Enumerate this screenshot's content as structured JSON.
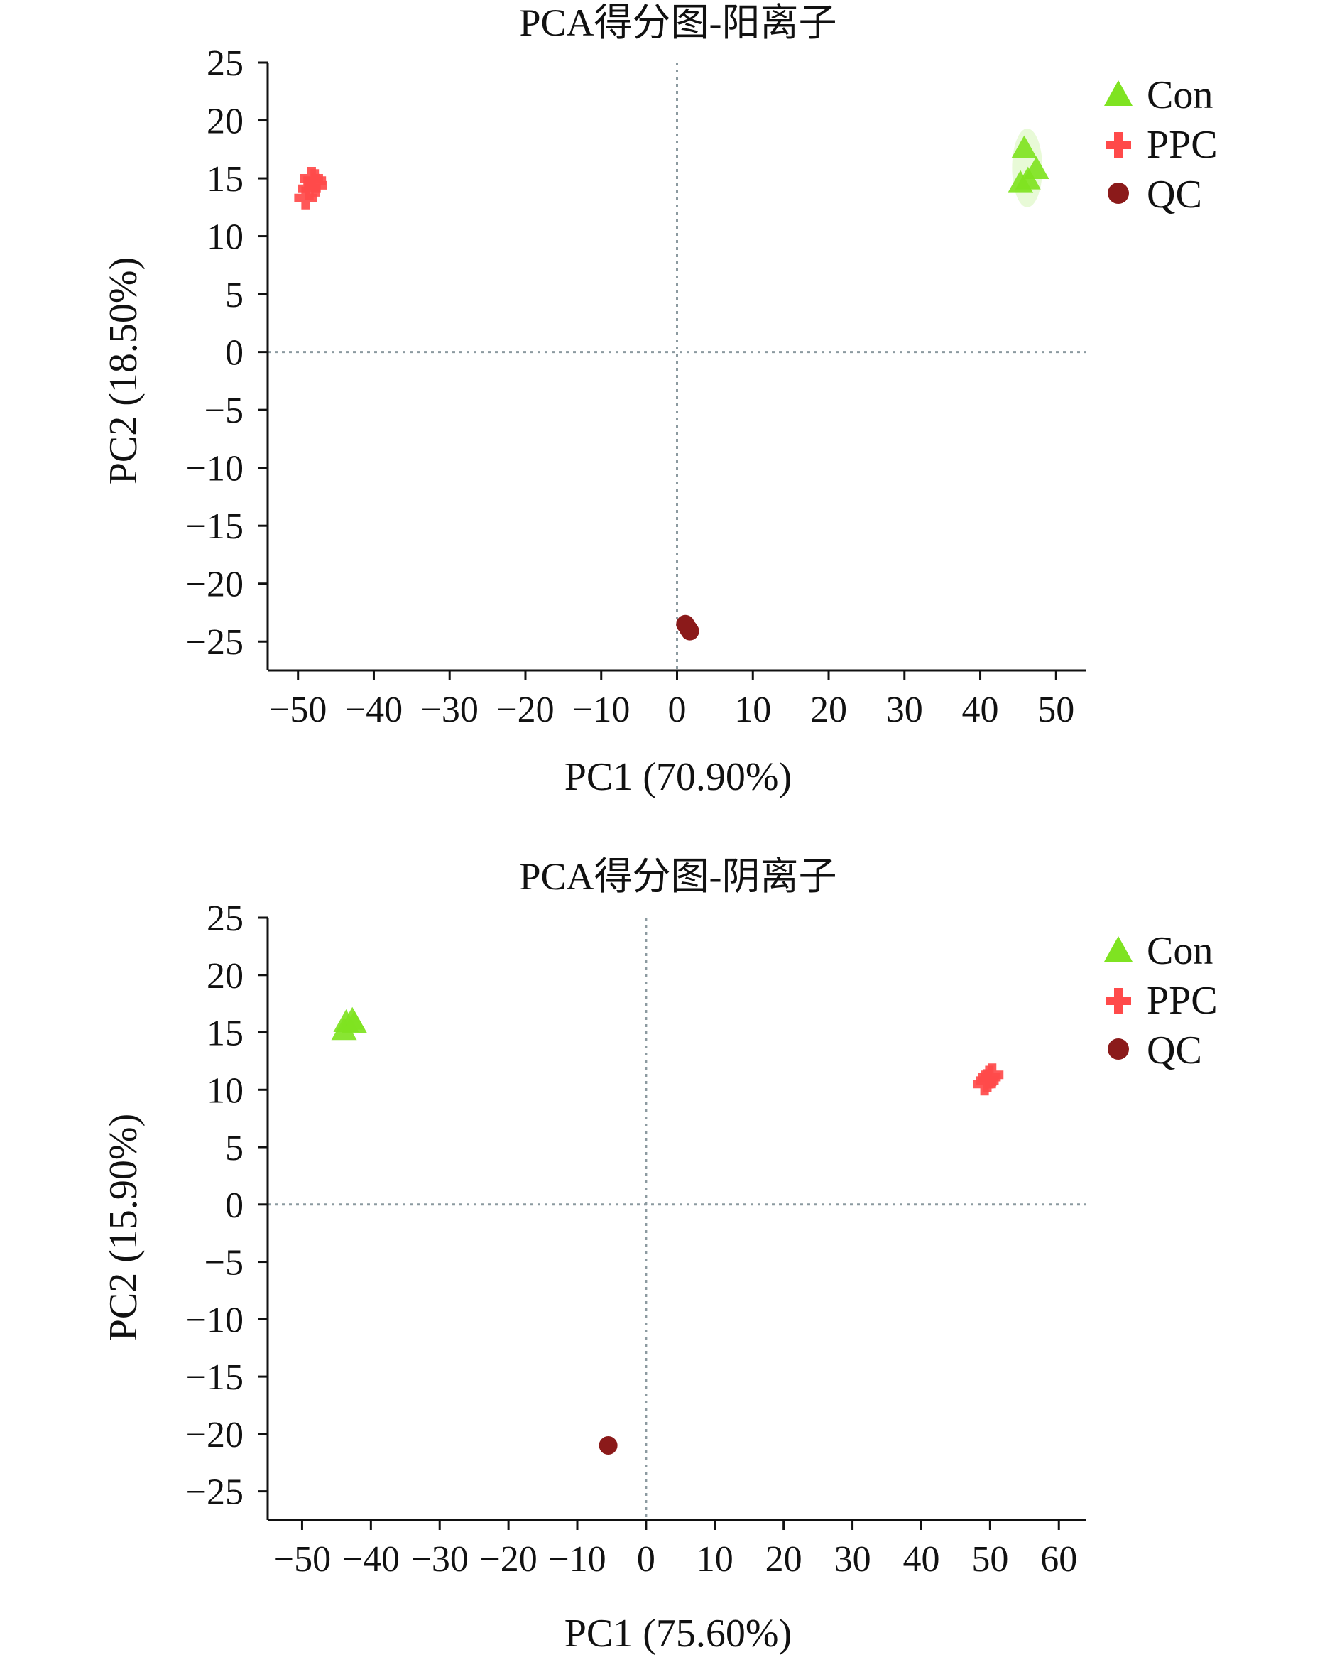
{
  "charts": [
    {
      "title": "PCA得分图-阳离子",
      "xlabel": "PC1 (70.90%)",
      "ylabel": "PC2 (18.50%)"
    },
    {
      "title": "PCA得分图-阴离子",
      "xlabel": "PC1 (75.60%)",
      "ylabel": "PC2 (15.90%)"
    }
  ],
  "legend_labels": [
    "Con",
    "PPC",
    "QC"
  ],
  "chart_data": [
    {
      "type": "scatter",
      "title": "PCA得分图-阳离子",
      "xlabel": "PC1 (70.90%)",
      "ylabel": "PC2 (18.50%)",
      "xlim": [
        -54,
        54
      ],
      "ylim": [
        -27.5,
        25
      ],
      "xticks": [
        -50,
        -40,
        -30,
        -20,
        -10,
        0,
        10,
        20,
        30,
        40,
        50
      ],
      "yticks": [
        25,
        20,
        15,
        10,
        5,
        0,
        -5,
        -10,
        -15,
        -20,
        -25
      ],
      "xtick_labels": [
        "−50",
        "−40",
        "−30",
        "−20",
        "−10",
        "0",
        "10",
        "20",
        "30",
        "40",
        "50"
      ],
      "ytick_labels": [
        "25",
        "20",
        "15",
        "10",
        "5",
        "0",
        "−5",
        "−10",
        "−15",
        "−20",
        "−25"
      ],
      "reference_lines": {
        "x": 0,
        "y": 0,
        "style": "dotted"
      },
      "legend_position": "top-right",
      "series": [
        {
          "name": "Con",
          "marker": "triangle",
          "color": "#7FE321",
          "points": [
            [
              45.8,
              17.6
            ],
            [
              47.4,
              15.8
            ],
            [
              45.3,
              14.6
            ],
            [
              46.3,
              14.9
            ]
          ],
          "ellipse": {
            "cx": 46.2,
            "cy": 15.9,
            "rx": 2.0,
            "ry": 3.4
          }
        },
        {
          "name": "PPC",
          "marker": "plus",
          "color": "#FF4A4A",
          "points": [
            [
              -48.2,
              15.0
            ],
            [
              -47.7,
              14.4
            ],
            [
              -48.5,
              14.1
            ],
            [
              -49.0,
              13.3
            ],
            [
              -47.8,
              14.8
            ]
          ]
        },
        {
          "name": "QC",
          "marker": "circle",
          "color": "#8B1A1A",
          "points": [
            [
              1.1,
              -23.5
            ],
            [
              1.5,
              -23.9
            ],
            [
              1.7,
              -24.1
            ]
          ]
        }
      ]
    },
    {
      "type": "scatter",
      "title": "PCA得分图-阴离子",
      "xlabel": "PC1 (75.60%)",
      "ylabel": "PC2 (15.90%)",
      "xlim": [
        -55,
        64
      ],
      "ylim": [
        -27.5,
        25
      ],
      "xticks": [
        -50,
        -40,
        -30,
        -20,
        -10,
        0,
        10,
        20,
        30,
        40,
        50,
        60
      ],
      "yticks": [
        25,
        20,
        15,
        10,
        5,
        0,
        -5,
        -10,
        -15,
        -20,
        -25
      ],
      "xtick_labels": [
        "−50",
        "−40",
        "−30",
        "−20",
        "−10",
        "0",
        "10",
        "20",
        "30",
        "40",
        "50",
        "60"
      ],
      "ytick_labels": [
        "25",
        "20",
        "15",
        "10",
        "5",
        "0",
        "−5",
        "−10",
        "−15",
        "−20",
        "−25"
      ],
      "reference_lines": {
        "x": 0,
        "y": 0,
        "style": "dotted"
      },
      "legend_position": "top-right",
      "series": [
        {
          "name": "Con",
          "marker": "triangle",
          "color": "#7FE321",
          "points": [
            [
              -43.6,
              15.9
            ],
            [
              -42.7,
              16.1
            ],
            [
              -43.9,
              15.2
            ],
            [
              -42.4,
              15.8
            ]
          ]
        },
        {
          "name": "PPC",
          "marker": "plus",
          "color": "#FF4A4A",
          "points": [
            [
              49.2,
              10.5
            ],
            [
              49.9,
              11.1
            ],
            [
              50.3,
              11.3
            ],
            [
              49.6,
              10.8
            ]
          ]
        },
        {
          "name": "QC",
          "marker": "circle",
          "color": "#8B1A1A",
          "points": [
            [
              -5.5,
              -21.0
            ]
          ]
        }
      ]
    }
  ]
}
